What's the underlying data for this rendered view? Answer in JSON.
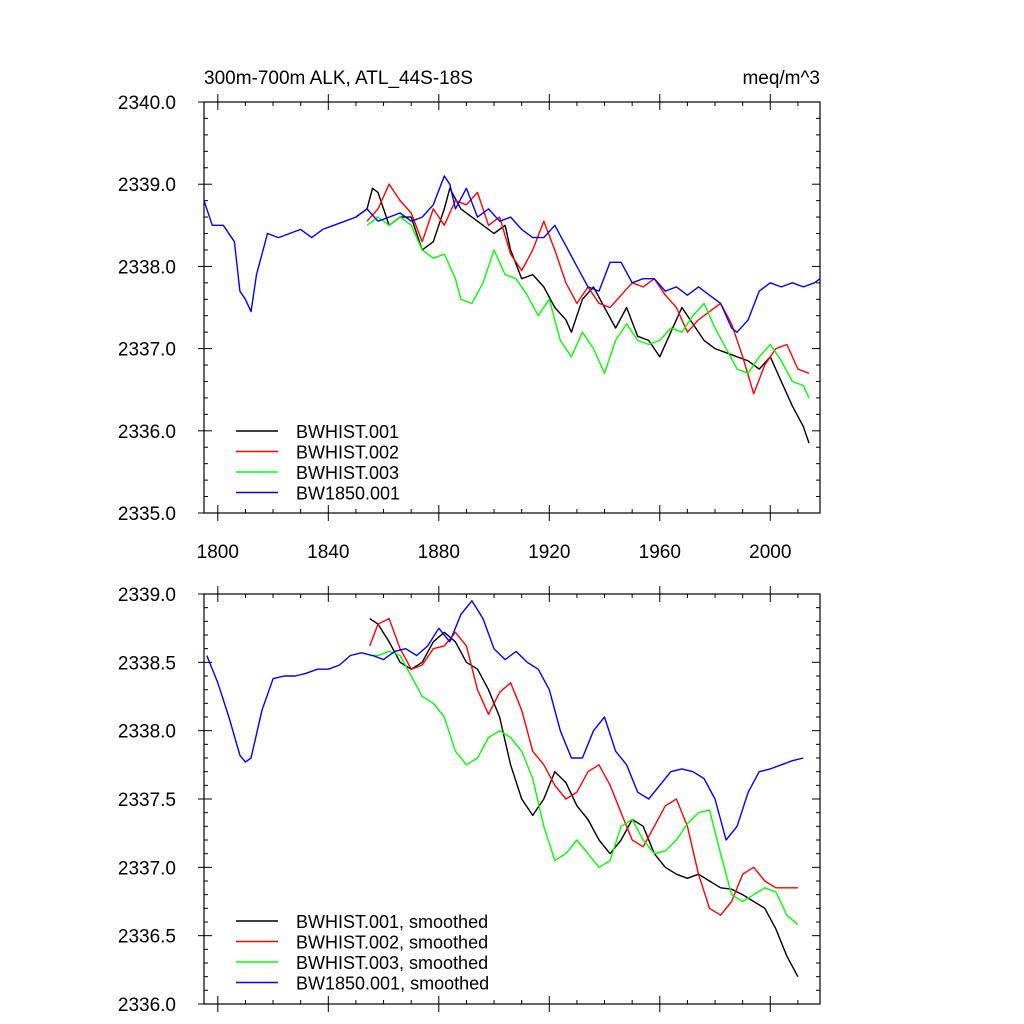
{
  "chart_data": [
    {
      "type": "line",
      "title": "300m-700m ALK, ATL_44S-18S",
      "units": "meq/m^3",
      "xlabel": "",
      "ylabel": "",
      "xlim": [
        1795,
        2018
      ],
      "ylim": [
        2335.0,
        2340.0
      ],
      "xticks": [
        1800,
        1840,
        1880,
        1920,
        1960,
        2000
      ],
      "yticks": [
        2335.0,
        2336.0,
        2337.0,
        2338.0,
        2339.0,
        2340.0
      ],
      "ytick_labels": [
        "2335.0",
        "2336.0",
        "2337.0",
        "2338.0",
        "2339.0",
        "2340.0"
      ],
      "show_xtick_labels": true,
      "legend_position": "bottom-left",
      "series": [
        {
          "name": "BWHIST.001",
          "color": "#000000",
          "x": [
            1850,
            1854,
            1856,
            1858,
            1862,
            1866,
            1870,
            1874,
            1878,
            1882,
            1884,
            1888,
            1892,
            1896,
            1900,
            1904,
            1906,
            1910,
            1914,
            1918,
            1922,
            1926,
            1928,
            1932,
            1936,
            1940,
            1944,
            1948,
            1952,
            1956,
            1960,
            1964,
            1968,
            1972,
            1976,
            1980,
            1984,
            1988,
            1992,
            1996,
            2000,
            2004,
            2008,
            2012,
            2014
          ],
          "y": [
            2338.6,
            2338.7,
            2338.95,
            2338.9,
            2338.5,
            2338.6,
            2338.6,
            2338.2,
            2338.3,
            2338.7,
            2338.95,
            2338.7,
            2338.6,
            2338.5,
            2338.4,
            2338.5,
            2338.2,
            2337.85,
            2337.9,
            2337.75,
            2337.5,
            2337.35,
            2337.2,
            2337.6,
            2337.75,
            2337.5,
            2337.25,
            2337.5,
            2337.15,
            2337.1,
            2336.9,
            2337.2,
            2337.5,
            2337.3,
            2337.1,
            2337.0,
            2336.95,
            2336.9,
            2336.85,
            2336.75,
            2336.9,
            2336.6,
            2336.3,
            2336.05,
            2335.85
          ]
        },
        {
          "name": "BWHIST.002",
          "color": "#ff0000",
          "x": [
            1854,
            1858,
            1862,
            1866,
            1870,
            1874,
            1878,
            1882,
            1886,
            1890,
            1894,
            1898,
            1902,
            1906,
            1910,
            1914,
            1918,
            1922,
            1926,
            1930,
            1934,
            1938,
            1942,
            1946,
            1950,
            1954,
            1958,
            1962,
            1966,
            1970,
            1974,
            1978,
            1982,
            1986,
            1990,
            1994,
            1998,
            2002,
            2006,
            2010,
            2014
          ],
          "y": [
            2338.55,
            2338.7,
            2339.0,
            2338.8,
            2338.65,
            2338.3,
            2338.7,
            2338.5,
            2338.8,
            2338.75,
            2338.9,
            2338.5,
            2338.6,
            2338.15,
            2337.95,
            2338.2,
            2338.55,
            2338.2,
            2337.8,
            2337.55,
            2337.75,
            2337.55,
            2337.5,
            2337.65,
            2337.8,
            2337.75,
            2337.85,
            2337.65,
            2337.5,
            2337.2,
            2337.35,
            2337.45,
            2337.55,
            2337.3,
            2336.9,
            2336.45,
            2336.8,
            2337.0,
            2337.05,
            2336.75,
            2336.7
          ]
        },
        {
          "name": "BWHIST.003",
          "color": "#00ff00",
          "x": [
            1854,
            1858,
            1862,
            1866,
            1870,
            1874,
            1878,
            1882,
            1886,
            1888,
            1892,
            1896,
            1900,
            1904,
            1908,
            1912,
            1916,
            1920,
            1924,
            1928,
            1932,
            1936,
            1940,
            1944,
            1948,
            1952,
            1956,
            1960,
            1964,
            1968,
            1972,
            1976,
            1980,
            1984,
            1988,
            1992,
            1996,
            2000,
            2004,
            2008,
            2012,
            2014
          ],
          "y": [
            2338.5,
            2338.6,
            2338.5,
            2338.6,
            2338.5,
            2338.2,
            2338.1,
            2338.15,
            2337.85,
            2337.6,
            2337.55,
            2337.8,
            2338.2,
            2337.9,
            2337.85,
            2337.65,
            2337.4,
            2337.6,
            2337.1,
            2336.9,
            2337.2,
            2337.0,
            2336.7,
            2337.1,
            2337.3,
            2337.1,
            2337.05,
            2337.1,
            2337.25,
            2337.2,
            2337.4,
            2337.55,
            2337.25,
            2337.0,
            2336.75,
            2336.7,
            2336.9,
            2337.05,
            2336.85,
            2336.6,
            2336.55,
            2336.4
          ]
        },
        {
          "name": "BW1850.001",
          "color": "#0000ff",
          "x": [
            1795,
            1798,
            1802,
            1806,
            1808,
            1810,
            1812,
            1814,
            1818,
            1822,
            1826,
            1830,
            1834,
            1838,
            1842,
            1846,
            1850,
            1854,
            1858,
            1862,
            1866,
            1870,
            1874,
            1878,
            1882,
            1884,
            1886,
            1890,
            1894,
            1898,
            1902,
            1906,
            1910,
            1914,
            1918,
            1922,
            1926,
            1930,
            1934,
            1938,
            1942,
            1946,
            1950,
            1954,
            1958,
            1962,
            1966,
            1970,
            1974,
            1978,
            1982,
            1986,
            1988,
            1992,
            1996,
            2000,
            2004,
            2008,
            2012,
            2016,
            2018
          ],
          "y": [
            2338.8,
            2338.5,
            2338.5,
            2338.3,
            2337.7,
            2337.6,
            2337.45,
            2337.9,
            2338.4,
            2338.35,
            2338.4,
            2338.45,
            2338.35,
            2338.45,
            2338.5,
            2338.55,
            2338.6,
            2338.7,
            2338.55,
            2338.6,
            2338.65,
            2338.55,
            2338.6,
            2338.75,
            2339.1,
            2339.0,
            2338.7,
            2338.95,
            2338.6,
            2338.7,
            2338.55,
            2338.6,
            2338.45,
            2338.35,
            2338.35,
            2338.5,
            2338.25,
            2338.0,
            2337.75,
            2337.7,
            2338.05,
            2338.05,
            2337.8,
            2337.85,
            2337.85,
            2337.7,
            2337.75,
            2337.65,
            2337.75,
            2337.65,
            2337.55,
            2337.25,
            2337.2,
            2337.35,
            2337.7,
            2337.8,
            2337.75,
            2337.8,
            2337.75,
            2337.8,
            2337.85
          ]
        }
      ]
    },
    {
      "type": "line",
      "title": "",
      "units": "",
      "xlabel": "",
      "ylabel": "",
      "xlim": [
        1795,
        2018
      ],
      "ylim": [
        2336.0,
        2339.0
      ],
      "xticks": [
        1800,
        1840,
        1880,
        1920,
        1960,
        2000
      ],
      "yticks": [
        2336.0,
        2336.5,
        2337.0,
        2337.5,
        2338.0,
        2338.5,
        2339.0
      ],
      "ytick_labels": [
        "2336.0",
        "2336.5",
        "2337.0",
        "2337.5",
        "2338.0",
        "2338.5",
        "2339.0"
      ],
      "show_xtick_labels": false,
      "legend_position": "bottom-left",
      "series": [
        {
          "name": "BWHIST.001, smoothed",
          "color": "#000000",
          "x": [
            1855,
            1858,
            1862,
            1866,
            1870,
            1874,
            1878,
            1882,
            1886,
            1890,
            1894,
            1898,
            1902,
            1906,
            1910,
            1914,
            1918,
            1922,
            1926,
            1930,
            1934,
            1938,
            1942,
            1946,
            1950,
            1954,
            1958,
            1962,
            1966,
            1970,
            1974,
            1978,
            1982,
            1986,
            1990,
            1994,
            1998,
            2002,
            2006,
            2010
          ],
          "y": [
            2338.82,
            2338.78,
            2338.65,
            2338.5,
            2338.45,
            2338.5,
            2338.65,
            2338.72,
            2338.65,
            2338.5,
            2338.45,
            2338.3,
            2338.1,
            2337.75,
            2337.5,
            2337.38,
            2337.5,
            2337.7,
            2337.62,
            2337.45,
            2337.35,
            2337.2,
            2337.1,
            2337.2,
            2337.35,
            2337.3,
            2337.1,
            2337.0,
            2336.95,
            2336.92,
            2336.95,
            2336.9,
            2336.85,
            2336.84,
            2336.8,
            2336.75,
            2336.7,
            2336.55,
            2336.35,
            2336.2
          ]
        },
        {
          "name": "BWHIST.002, smoothed",
          "color": "#ff0000",
          "x": [
            1855,
            1858,
            1862,
            1866,
            1870,
            1874,
            1878,
            1882,
            1886,
            1890,
            1894,
            1898,
            1902,
            1906,
            1910,
            1914,
            1918,
            1922,
            1926,
            1930,
            1934,
            1938,
            1942,
            1946,
            1950,
            1954,
            1958,
            1962,
            1966,
            1970,
            1974,
            1978,
            1982,
            1986,
            1990,
            1994,
            1998,
            2002,
            2006,
            2010
          ],
          "y": [
            2338.62,
            2338.78,
            2338.82,
            2338.6,
            2338.45,
            2338.48,
            2338.6,
            2338.62,
            2338.72,
            2338.62,
            2338.3,
            2338.12,
            2338.28,
            2338.35,
            2338.15,
            2337.85,
            2337.75,
            2337.6,
            2337.5,
            2337.55,
            2337.7,
            2337.75,
            2337.6,
            2337.4,
            2337.2,
            2337.15,
            2337.3,
            2337.45,
            2337.5,
            2337.3,
            2336.95,
            2336.7,
            2336.65,
            2336.75,
            2336.95,
            2337.0,
            2336.9,
            2336.85,
            2336.85,
            2336.85
          ]
        },
        {
          "name": "BWHIST.003, smoothed",
          "color": "#00ff00",
          "x": [
            1855,
            1858,
            1862,
            1866,
            1870,
            1874,
            1878,
            1882,
            1886,
            1890,
            1894,
            1898,
            1902,
            1906,
            1910,
            1914,
            1918,
            1922,
            1926,
            1930,
            1934,
            1938,
            1942,
            1946,
            1950,
            1954,
            1958,
            1962,
            1966,
            1970,
            1974,
            1978,
            1982,
            1986,
            1990,
            1994,
            1998,
            2002,
            2006,
            2010
          ],
          "y": [
            2338.55,
            2338.55,
            2338.58,
            2338.55,
            2338.4,
            2338.25,
            2338.2,
            2338.1,
            2337.85,
            2337.75,
            2337.8,
            2337.95,
            2338.0,
            2337.95,
            2337.85,
            2337.65,
            2337.3,
            2337.05,
            2337.1,
            2337.2,
            2337.1,
            2337.0,
            2337.05,
            2337.3,
            2337.35,
            2337.2,
            2337.1,
            2337.12,
            2337.2,
            2337.32,
            2337.4,
            2337.42,
            2337.1,
            2336.8,
            2336.75,
            2336.8,
            2336.85,
            2336.82,
            2336.65,
            2336.58
          ]
        },
        {
          "name": "BW1850.001, smoothed",
          "color": "#0000ff",
          "x": [
            1796,
            1800,
            1804,
            1808,
            1810,
            1812,
            1816,
            1820,
            1824,
            1828,
            1832,
            1836,
            1840,
            1844,
            1848,
            1852,
            1856,
            1860,
            1864,
            1868,
            1872,
            1876,
            1880,
            1884,
            1888,
            1892,
            1896,
            1900,
            1904,
            1908,
            1912,
            1916,
            1920,
            1924,
            1928,
            1932,
            1936,
            1940,
            1944,
            1948,
            1952,
            1956,
            1960,
            1964,
            1968,
            1972,
            1976,
            1980,
            1984,
            1988,
            1992,
            1996,
            2000,
            2004,
            2008,
            2012
          ],
          "y": [
            2338.55,
            2338.35,
            2338.1,
            2337.82,
            2337.77,
            2337.8,
            2338.15,
            2338.38,
            2338.4,
            2338.4,
            2338.42,
            2338.45,
            2338.45,
            2338.48,
            2338.55,
            2338.57,
            2338.55,
            2338.52,
            2338.58,
            2338.6,
            2338.55,
            2338.62,
            2338.75,
            2338.65,
            2338.85,
            2338.95,
            2338.82,
            2338.6,
            2338.52,
            2338.58,
            2338.5,
            2338.45,
            2338.3,
            2338.0,
            2337.8,
            2337.8,
            2338.0,
            2338.1,
            2337.85,
            2337.75,
            2337.55,
            2337.5,
            2337.6,
            2337.7,
            2337.72,
            2337.7,
            2337.65,
            2337.5,
            2337.2,
            2337.3,
            2337.55,
            2337.7,
            2337.72,
            2337.75,
            2337.78,
            2337.8
          ]
        }
      ]
    }
  ]
}
